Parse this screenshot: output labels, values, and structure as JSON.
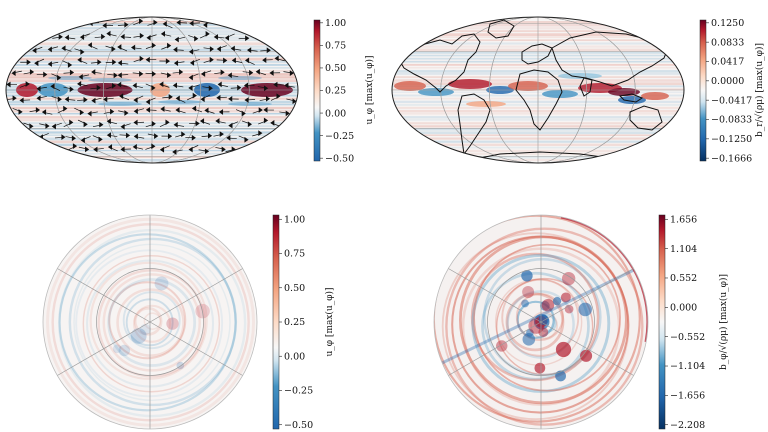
{
  "panels": [
    {
      "id": "top-left",
      "projection": "mollweide",
      "overlay": "arrows",
      "colorbar": {
        "label": "u_φ [max(u_φ)]",
        "ticks": [
          "1.00",
          "0.75",
          "0.50",
          "0.25",
          "0.00",
          "−0.25",
          "−0.50"
        ],
        "range": [
          -0.62,
          1.0
        ]
      }
    },
    {
      "id": "top-right",
      "projection": "mollweide",
      "overlay": "continents",
      "colorbar": {
        "label": "b_r/√(ρμ) [max(u_φ)]",
        "ticks": [
          "0.1250",
          "0.0833",
          "0.0417",
          "0.0000",
          "−0.0417",
          "−0.0833",
          "−0.1250",
          "−0.1666"
        ],
        "range": [
          -0.1666,
          0.1666
        ]
      }
    },
    {
      "id": "bottom-left",
      "projection": "polar",
      "overlay": "none",
      "colorbar": {
        "label": "u_φ [max(u_φ)]",
        "ticks": [
          "1.00",
          "0.75",
          "0.50",
          "0.25",
          "0.00",
          "−0.25",
          "−0.50"
        ],
        "range": [
          -0.62,
          1.0
        ]
      }
    },
    {
      "id": "bottom-right",
      "projection": "polar",
      "overlay": "none",
      "colorbar": {
        "label": "b_φ/√(ρμ) [max(u_φ)]",
        "ticks": [
          "1.656",
          "1.104",
          "0.552",
          "0.000",
          "−0.552",
          "−1.104",
          "−1.656",
          "−2.208"
        ],
        "range": [
          -2.208,
          2.0
        ]
      }
    }
  ],
  "colors": {
    "positive": "#67001f",
    "neutral": "#f7f7f7",
    "negative": "#053061",
    "grid": "#9a9a9a",
    "outline": "#222222"
  }
}
